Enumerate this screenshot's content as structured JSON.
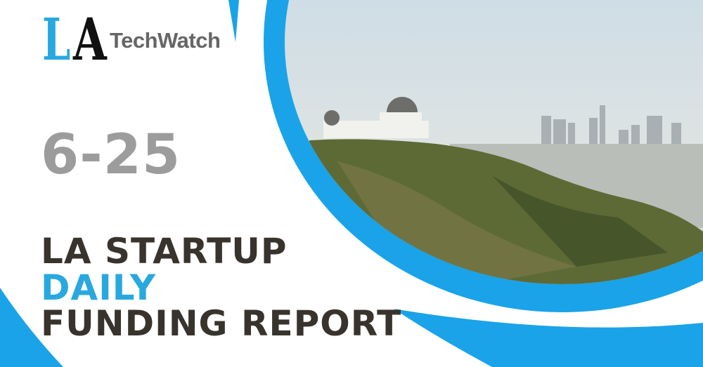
{
  "logo": {
    "letters_l": "L",
    "letters_a": "A",
    "name": "TechWatch"
  },
  "date": "6-25",
  "headline": {
    "line1": "LA STARTUP",
    "line2": "DAILY",
    "line3": "FUNDING REPORT"
  },
  "colors": {
    "accent_blue": "#29a8e0",
    "dark_text": "#38332c",
    "date_gray": "#9c9c9c"
  }
}
